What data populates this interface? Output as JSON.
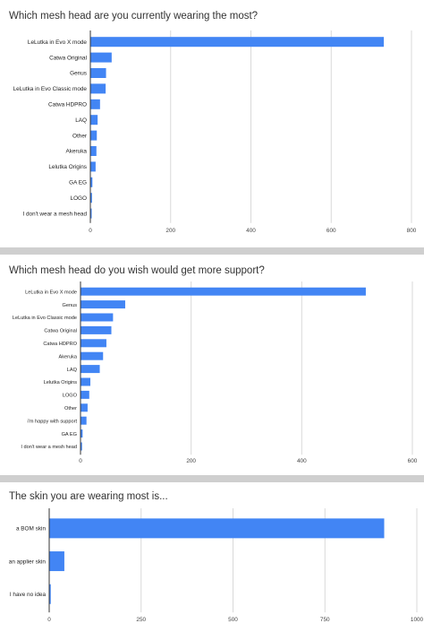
{
  "chart_data": [
    {
      "type": "bar",
      "orientation": "horizontal",
      "title": "Which mesh head are you currently wearing the most?",
      "categories": [
        "LeLutka in Evo X mode",
        "Catwa Original",
        "Genus",
        "LeLutka in Evo Classic mode",
        "Catwa HDPRO",
        "LAQ",
        "Other",
        "Akeruka",
        "Lelutka Origins",
        "GA EG",
        "LOGO",
        "I don't wear a mesh head"
      ],
      "values": [
        730,
        52,
        38,
        37,
        23,
        17,
        15,
        14,
        12,
        4,
        3,
        1
      ],
      "xlim": [
        0,
        800
      ],
      "xticks": [
        0,
        200,
        400,
        600,
        800
      ],
      "color": "#4285f4",
      "grid": true,
      "legend": "none"
    },
    {
      "type": "bar",
      "orientation": "horizontal",
      "title": "Which mesh head do you wish would get more support?",
      "categories": [
        "LeLutka in Evo X mode",
        "Genus",
        "LeLutka in Evo Classic mode",
        "Catwa Original",
        "Catwa HDPRO",
        "Akeruka",
        "LAQ",
        "Lelutka Origins",
        "LOGO",
        "Other",
        "i'm happy with support",
        "GA EG",
        "I don't wear a mesh head"
      ],
      "values": [
        515,
        80,
        58,
        55,
        46,
        40,
        34,
        17,
        15,
        12,
        10,
        3,
        2
      ],
      "xlim": [
        0,
        600
      ],
      "xticks": [
        0,
        200,
        400,
        600
      ],
      "color": "#4285f4",
      "grid": true,
      "legend": "none"
    },
    {
      "type": "bar",
      "orientation": "horizontal",
      "title": "The skin you are wearing most is...",
      "categories": [
        "a BOM skin",
        "an applier skin",
        "I have no idea"
      ],
      "values": [
        910,
        40,
        3
      ],
      "xlim": [
        0,
        1000
      ],
      "xticks": [
        0,
        250,
        500,
        750,
        1000
      ],
      "color": "#4285f4",
      "grid": true,
      "legend": "none"
    }
  ]
}
